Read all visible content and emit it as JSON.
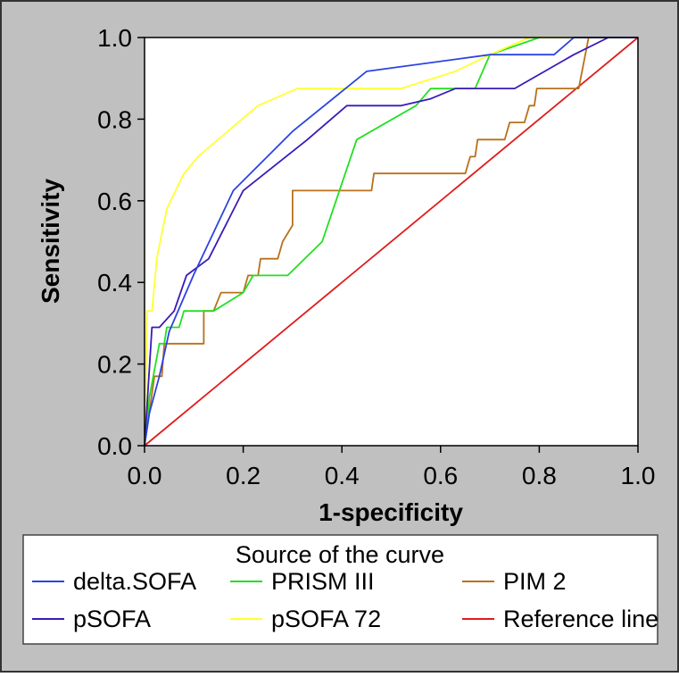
{
  "chart_data": {
    "type": "line",
    "title": "",
    "xlabel": "1-specificity",
    "ylabel": "Sensitivity",
    "xlim": [
      0,
      1
    ],
    "ylim": [
      0,
      1
    ],
    "x_ticks": [
      "0.0",
      "0.2",
      "0.4",
      "0.6",
      "0.8",
      "1.0"
    ],
    "y_ticks": [
      "0.0",
      "0.2",
      "0.4",
      "0.6",
      "0.8",
      "1.0"
    ],
    "grid": false,
    "legend": {
      "title": "Source of the curve",
      "placement": "bottom",
      "columns": 3
    },
    "series": [
      {
        "name": "delta.SOFA",
        "color": "#2b44e0",
        "points": [
          [
            0,
            0
          ],
          [
            0.01,
            0.08
          ],
          [
            0.03,
            0.17
          ],
          [
            0.05,
            0.28
          ],
          [
            0.1,
            0.42
          ],
          [
            0.18,
            0.625
          ],
          [
            0.3,
            0.77
          ],
          [
            0.45,
            0.917
          ],
          [
            0.7,
            0.958
          ],
          [
            0.83,
            0.958
          ],
          [
            0.87,
            1.0
          ],
          [
            1.0,
            1.0
          ]
        ]
      },
      {
        "name": "PRISM III",
        "color": "#22e022",
        "points": [
          [
            0,
            0
          ],
          [
            0.01,
            0.12
          ],
          [
            0.03,
            0.25
          ],
          [
            0.04,
            0.25
          ],
          [
            0.045,
            0.29
          ],
          [
            0.07,
            0.29
          ],
          [
            0.08,
            0.33
          ],
          [
            0.14,
            0.33
          ],
          [
            0.2,
            0.375
          ],
          [
            0.22,
            0.417
          ],
          [
            0.29,
            0.417
          ],
          [
            0.36,
            0.5
          ],
          [
            0.43,
            0.75
          ],
          [
            0.55,
            0.833
          ],
          [
            0.58,
            0.875
          ],
          [
            0.67,
            0.875
          ],
          [
            0.7,
            0.958
          ],
          [
            0.8,
            1.0
          ],
          [
            1.0,
            1.0
          ]
        ]
      },
      {
        "name": "PIM 2",
        "color": "#b8701a",
        "points": [
          [
            0,
            0
          ],
          [
            0.02,
            0.17
          ],
          [
            0.035,
            0.17
          ],
          [
            0.04,
            0.25
          ],
          [
            0.12,
            0.25
          ],
          [
            0.12,
            0.33
          ],
          [
            0.14,
            0.33
          ],
          [
            0.155,
            0.375
          ],
          [
            0.2,
            0.375
          ],
          [
            0.21,
            0.417
          ],
          [
            0.23,
            0.417
          ],
          [
            0.235,
            0.458
          ],
          [
            0.27,
            0.458
          ],
          [
            0.28,
            0.5
          ],
          [
            0.3,
            0.54
          ],
          [
            0.3,
            0.625
          ],
          [
            0.46,
            0.625
          ],
          [
            0.465,
            0.667
          ],
          [
            0.65,
            0.667
          ],
          [
            0.66,
            0.708
          ],
          [
            0.67,
            0.708
          ],
          [
            0.675,
            0.75
          ],
          [
            0.73,
            0.75
          ],
          [
            0.74,
            0.792
          ],
          [
            0.77,
            0.792
          ],
          [
            0.78,
            0.833
          ],
          [
            0.79,
            0.833
          ],
          [
            0.795,
            0.875
          ],
          [
            0.86,
            0.875
          ],
          [
            0.88,
            0.875
          ],
          [
            0.9,
            1.0
          ],
          [
            1.0,
            1.0
          ]
        ]
      },
      {
        "name": "pSOFA",
        "color": "#3a1bb8",
        "points": [
          [
            0,
            0
          ],
          [
            0.015,
            0.29
          ],
          [
            0.03,
            0.29
          ],
          [
            0.06,
            0.33
          ],
          [
            0.085,
            0.417
          ],
          [
            0.13,
            0.458
          ],
          [
            0.2,
            0.625
          ],
          [
            0.33,
            0.75
          ],
          [
            0.41,
            0.833
          ],
          [
            0.52,
            0.833
          ],
          [
            0.58,
            0.85
          ],
          [
            0.63,
            0.875
          ],
          [
            0.75,
            0.875
          ],
          [
            0.87,
            0.958
          ],
          [
            0.94,
            1.0
          ],
          [
            1.0,
            1.0
          ]
        ]
      },
      {
        "name": "pSOFA 72",
        "color": "#ffff33",
        "points": [
          [
            0,
            0
          ],
          [
            0.005,
            0.33
          ],
          [
            0.015,
            0.33
          ],
          [
            0.025,
            0.46
          ],
          [
            0.045,
            0.58
          ],
          [
            0.08,
            0.667
          ],
          [
            0.11,
            0.71
          ],
          [
            0.23,
            0.833
          ],
          [
            0.31,
            0.875
          ],
          [
            0.52,
            0.875
          ],
          [
            0.63,
            0.917
          ],
          [
            0.7,
            0.958
          ],
          [
            0.78,
            1.0
          ],
          [
            1.0,
            1.0
          ]
        ]
      },
      {
        "name": "Reference line",
        "color": "#e01b1b",
        "points": [
          [
            0,
            0
          ],
          [
            1,
            1
          ]
        ]
      }
    ]
  }
}
